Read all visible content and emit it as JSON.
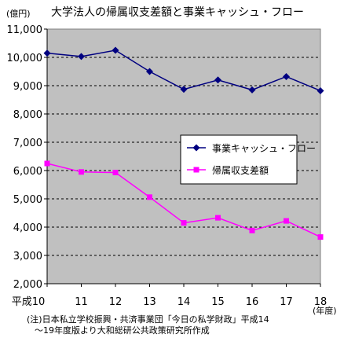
{
  "chart_data": {
    "type": "line",
    "title": "大学法人の帰属収支差額と事業キャッシュ・フロー",
    "unit_label": "(億円)",
    "year_unit_label": "(年度)",
    "x_first_prefix": "平成",
    "x": [
      "10",
      "11",
      "12",
      "13",
      "14",
      "15",
      "16",
      "17",
      "18"
    ],
    "ylim": [
      2000,
      11000
    ],
    "yticks": [
      "2,000",
      "3,000",
      "4,000",
      "5,000",
      "6,000",
      "7,000",
      "8,000",
      "9,000",
      "10,000",
      "11,000"
    ],
    "grid": true,
    "legend_position": "center-right",
    "series": [
      {
        "name": "事業キャッシュ・フロー",
        "color": "#000080",
        "marker": "diamond",
        "values": [
          10150,
          10030,
          10250,
          9500,
          8870,
          9200,
          8850,
          9320,
          8820
        ]
      },
      {
        "name": "帰属収支差額",
        "color": "#ff00ff",
        "marker": "square",
        "values": [
          6250,
          5950,
          5930,
          5060,
          4150,
          4330,
          3880,
          4220,
          3650
        ]
      }
    ],
    "plot_background": "#c0c0c0"
  },
  "footnote": {
    "line1": "(注)日本私立学校振興・共済事業団「今日の私学財政」平成14",
    "line2": "～19年度版より大和総研公共政策研究所作成"
  }
}
